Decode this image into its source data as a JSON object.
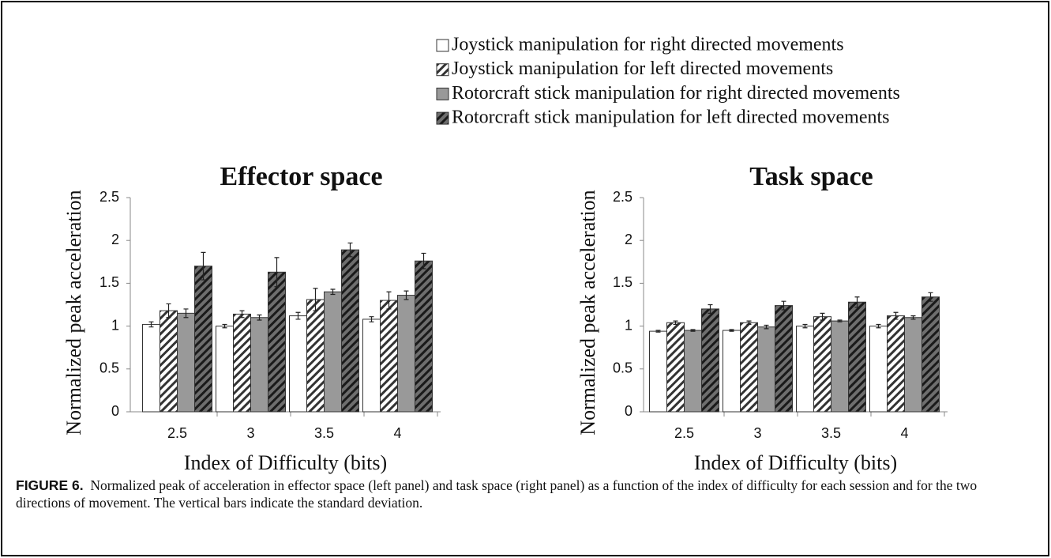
{
  "chart_data": [
    {
      "type": "bar",
      "title": "Effector space",
      "x_label": "Index of Difficulty (bits)",
      "y_label": "Normalized peak acceleration",
      "categories": [
        "2.5",
        "3",
        "3.5",
        "4"
      ],
      "series": [
        {
          "name": "Joystick manipulation for right directed movements",
          "color": "#ffffff",
          "values": [
            1.02,
            1.0,
            1.12,
            1.08
          ],
          "errors": [
            0.03,
            0.02,
            0.04,
            0.03
          ]
        },
        {
          "name": "Joystick manipulation for left directed movements",
          "color": "#ffffff",
          "hatch": "#333333",
          "values": [
            1.18,
            1.14,
            1.31,
            1.3
          ],
          "errors": [
            0.08,
            0.04,
            0.13,
            0.1
          ]
        },
        {
          "name": "Rotorcraft stick manipulation for right directed movements",
          "color": "#999999",
          "values": [
            1.15,
            1.1,
            1.4,
            1.36
          ],
          "errors": [
            0.05,
            0.03,
            0.03,
            0.05
          ]
        },
        {
          "name": "Rotorcraft stick manipulation for left directed movements",
          "color": "#6e6e6e",
          "hatch": "#1a1a1a",
          "values": [
            1.7,
            1.63,
            1.89,
            1.76
          ],
          "errors": [
            0.16,
            0.17,
            0.08,
            0.09
          ]
        }
      ],
      "ylim": [
        0,
        2.5
      ],
      "yticks": [
        0,
        0.5,
        1,
        1.5,
        2,
        2.5
      ],
      "grid": false
    },
    {
      "type": "bar",
      "title": "Task space",
      "x_label": "Index of Difficulty (bits)",
      "y_label": "Normalized peak acceleration",
      "categories": [
        "2.5",
        "3",
        "3.5",
        "4"
      ],
      "series": [
        {
          "color": "#ffffff",
          "values": [
            0.94,
            0.95,
            1.0,
            1.0
          ],
          "errors": [
            0.01,
            0.01,
            0.02,
            0.02
          ]
        },
        {
          "color": "#ffffff",
          "hatch": "#333333",
          "values": [
            1.04,
            1.04,
            1.11,
            1.12
          ],
          "errors": [
            0.02,
            0.02,
            0.04,
            0.04
          ]
        },
        {
          "color": "#999999",
          "values": [
            0.95,
            0.99,
            1.06,
            1.1
          ],
          "errors": [
            0.01,
            0.02,
            0.01,
            0.02
          ]
        },
        {
          "color": "#6e6e6e",
          "hatch": "#1a1a1a",
          "values": [
            1.2,
            1.24,
            1.28,
            1.34
          ],
          "errors": [
            0.05,
            0.05,
            0.06,
            0.05
          ]
        }
      ],
      "ylim": [
        0,
        2.5
      ],
      "yticks": [
        0,
        0.5,
        1,
        1.5,
        2,
        2.5
      ],
      "grid": false
    }
  ],
  "caption": {
    "label": "FIGURE 6.",
    "text": "Normalized peak of acceleration in effector space (left panel) and task space (right panel) as a function of the index of difficulty for each session and for the two directions of movement. The vertical bars indicate the standard deviation."
  }
}
